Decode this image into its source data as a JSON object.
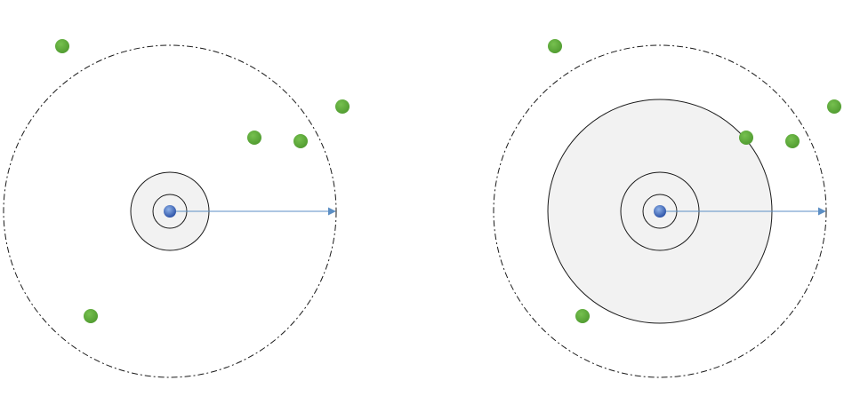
{
  "colors": {
    "background": "#ffffff",
    "outline": "#1a1a1a",
    "shaded_fill": "#f2f2f2",
    "arrow": "#5b8ec4",
    "point_fill": "#5fa83e",
    "point_stroke": "#4f8f33",
    "center_light": "#8fb2e8",
    "center_dark": "#2e54a8"
  },
  "icons": {
    "center": "center-dot-icon",
    "point": "green-point-icon",
    "arrow": "arrowhead-icon"
  },
  "panels": [
    {
      "id": "left",
      "search_circle_state": "small"
    },
    {
      "id": "right",
      "search_circle_state": "expanded"
    }
  ]
}
